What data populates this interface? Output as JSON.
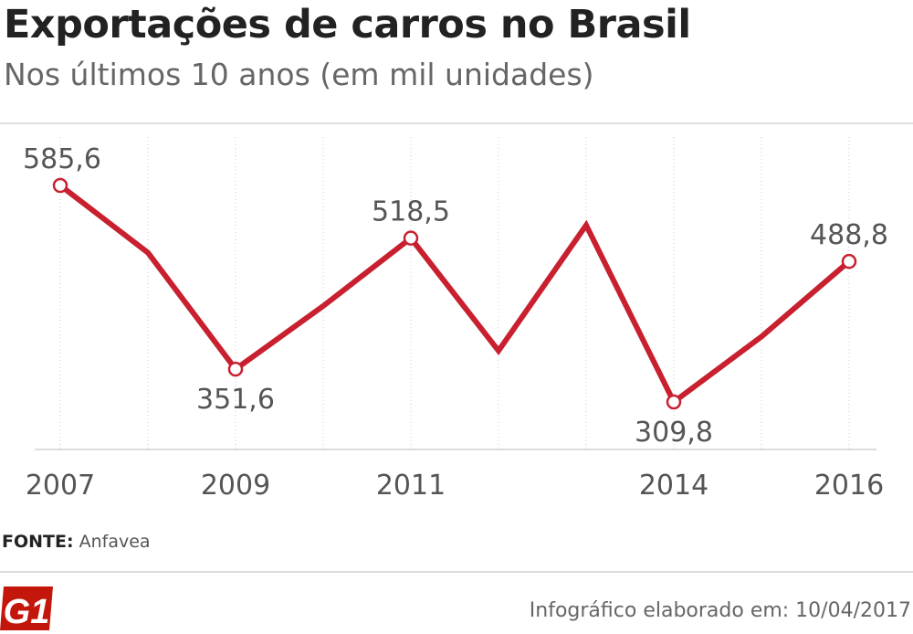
{
  "title": "Exportações de carros no Brasil",
  "subtitle": "Nos últimos 10 anos (em mil unidades)",
  "colors": {
    "line": "#c8202f",
    "axis": "#bbbbbb",
    "text": "#555555"
  },
  "chart_data": {
    "type": "line",
    "title": "Exportações de carros no Brasil",
    "subtitle": "Nos últimos 10 anos (em mil unidades)",
    "x": [
      2007,
      2008,
      2009,
      2010,
      2011,
      2012,
      2013,
      2014,
      2015,
      2016
    ],
    "x_tick_labels": [
      "2007",
      "",
      "2009",
      "",
      "2011",
      "",
      "",
      "2014",
      "",
      "2016"
    ],
    "series": [
      {
        "name": "Exportações (mil unidades)",
        "values": [
          585.6,
          500.0,
          351.6,
          432.0,
          518.5,
          375.0,
          535.0,
          309.8,
          393.0,
          488.8
        ]
      }
    ],
    "labeled_points": [
      {
        "index": 0,
        "label": "585,6",
        "position": "above"
      },
      {
        "index": 2,
        "label": "351,6",
        "position": "below"
      },
      {
        "index": 4,
        "label": "518,5",
        "position": "above"
      },
      {
        "index": 7,
        "label": "309,8",
        "position": "below"
      },
      {
        "index": 9,
        "label": "488,8",
        "position": "above"
      }
    ],
    "ylim": [
      250,
      620
    ],
    "grid": "vertical-dotted",
    "xlabel": "",
    "ylabel": ""
  },
  "source": {
    "label": "FONTE:",
    "value": "Anfavea"
  },
  "logo_text": "G1",
  "credit": "Infográfico elaborado em: 10/04/2017"
}
